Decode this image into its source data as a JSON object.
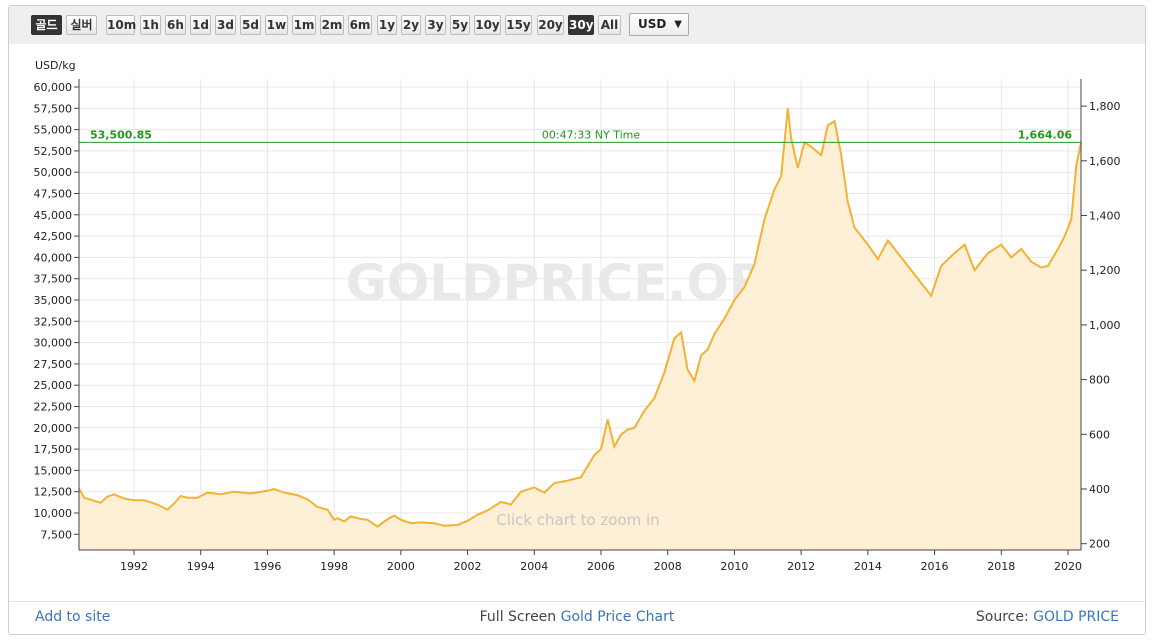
{
  "toolbar": {
    "buttons": [
      {
        "label": "골드",
        "active": true
      },
      {
        "label": "실버",
        "active": false
      },
      {
        "label": "10m",
        "active": false
      },
      {
        "label": "1h",
        "active": false
      },
      {
        "label": "6h",
        "active": false
      },
      {
        "label": "1d",
        "active": false
      },
      {
        "label": "3d",
        "active": false
      },
      {
        "label": "5d",
        "active": false
      },
      {
        "label": "1w",
        "active": false
      },
      {
        "label": "1m",
        "active": false
      },
      {
        "label": "2m",
        "active": false
      },
      {
        "label": "6m",
        "active": false
      },
      {
        "label": "1y",
        "active": false
      },
      {
        "label": "2y",
        "active": false
      },
      {
        "label": "3y",
        "active": false
      },
      {
        "label": "5y",
        "active": false
      },
      {
        "label": "10y",
        "active": false
      },
      {
        "label": "15y",
        "active": false
      },
      {
        "label": "20y",
        "active": false
      },
      {
        "label": "30y",
        "active": true
      },
      {
        "label": "All",
        "active": false
      }
    ],
    "currency": "USD",
    "currency_caret": "▼"
  },
  "colors": {
    "line": "#f2b233",
    "area": "#fdf0d7",
    "current_line": "#2a9a2a",
    "current_text": "#1f9a1f",
    "grid": "#e7e7e7",
    "active_button": "#333333"
  },
  "watermark": "GOLDPRICE.ORG",
  "zoom_hint": "Click chart to zoom in",
  "footer": {
    "add_link": "Add to site",
    "full_screen_prefix": "Full Screen ",
    "full_screen_link": "Gold Price Chart",
    "source_prefix": "Source: ",
    "source_link": "GOLD PRICE"
  },
  "chart_data": {
    "type": "area",
    "left_axis_unit": "USD/kg",
    "left_ticks": [
      7500,
      10000,
      12500,
      15000,
      17500,
      20000,
      22500,
      25000,
      27500,
      30000,
      32500,
      35000,
      37500,
      40000,
      42500,
      45000,
      47500,
      50000,
      52500,
      55000,
      57500,
      60000
    ],
    "left_tick_labels": [
      "7,500",
      "10,000",
      "12,500",
      "15,000",
      "17,500",
      "20,000",
      "22,500",
      "25,000",
      "27,500",
      "30,000",
      "32,500",
      "35,000",
      "37,500",
      "40,000",
      "42,500",
      "45,000",
      "47,500",
      "50,000",
      "52,500",
      "55,000",
      "57,500",
      "60,000"
    ],
    "right_ticks": [
      200,
      400,
      600,
      800,
      1000,
      1200,
      1400,
      1600,
      1800
    ],
    "right_tick_labels": [
      "200",
      "400",
      "600",
      "800",
      "1,000",
      "1,200",
      "1,400",
      "1,600",
      "1,800"
    ],
    "x_ticks": [
      1992,
      1994,
      1996,
      1998,
      2000,
      2002,
      2004,
      2006,
      2008,
      2010,
      2012,
      2014,
      2016,
      2018,
      2020
    ],
    "x_range": [
      1990.25,
      2020.4
    ],
    "y_range_usd_kg": [
      6000,
      61000
    ],
    "grid": true,
    "current": {
      "value_kg": "53,500.85",
      "value_oz": "1,664.06",
      "time": "00:47:33 NY Time",
      "value_kg_num": 53500.85
    },
    "series": [
      {
        "x": [
          1990.25,
          1990.5,
          1991.0,
          1991.2,
          1991.4,
          1991.7,
          1992.0,
          1992.3,
          1992.7,
          1993.0,
          1993.2,
          1993.4,
          1993.6,
          1993.9,
          1994.2,
          1994.6,
          1995.0,
          1995.5,
          1996.0,
          1996.2,
          1996.5,
          1996.9,
          1997.2,
          1997.5,
          1997.8,
          1998.0,
          1998.1,
          1998.3,
          1998.5,
          1998.8,
          1999.0,
          1999.3,
          1999.5,
          1999.7,
          1999.8,
          2000.0,
          2000.3,
          2000.6,
          2001.0,
          2001.3,
          2001.7,
          2002.0,
          2002.3,
          2002.6,
          2003.0,
          2003.3,
          2003.6,
          2004.0,
          2004.3,
          2004.6,
          2005.0,
          2005.4,
          2005.8,
          2006.0,
          2006.2,
          2006.4,
          2006.6,
          2006.8,
          2007.0,
          2007.3,
          2007.6,
          2007.9,
          2008.2,
          2008.4,
          2008.6,
          2008.8,
          2009.0,
          2009.2,
          2009.4,
          2009.7,
          2010.0,
          2010.3,
          2010.6,
          2010.9,
          2011.2,
          2011.4,
          2011.6,
          2011.7,
          2011.9,
          2012.1,
          2012.3,
          2012.6,
          2012.8,
          2013.0,
          2013.2,
          2013.4,
          2013.6,
          2014.0,
          2014.3,
          2014.6,
          2015.0,
          2015.3,
          2015.6,
          2015.9,
          2016.2,
          2016.6,
          2016.9,
          2017.2,
          2017.6,
          2018.0,
          2018.3,
          2018.6,
          2018.9,
          2019.2,
          2019.4,
          2019.7,
          2019.9,
          2020.1,
          2020.25,
          2020.4
        ],
        "y": [
          12900,
          11800,
          11200,
          11900,
          12200,
          11700,
          11500,
          11500,
          11000,
          10400,
          11100,
          12000,
          11800,
          11800,
          12400,
          12200,
          12500,
          12300,
          12600,
          12800,
          12400,
          12100,
          11600,
          10700,
          10400,
          9200,
          9400,
          9000,
          9600,
          9300,
          9200,
          8400,
          9000,
          9500,
          9700,
          9200,
          8800,
          8900,
          8800,
          8500,
          8600,
          9100,
          9800,
          10300,
          11300,
          11000,
          12500,
          13000,
          12400,
          13500,
          13800,
          14200,
          16800,
          17500,
          21000,
          17800,
          19200,
          19800,
          20000,
          22000,
          23500,
          26500,
          30500,
          31200,
          26800,
          25500,
          28500,
          29200,
          31000,
          32800,
          35000,
          36500,
          39200,
          44500,
          48000,
          49500,
          57500,
          54000,
          50500,
          53500,
          53000,
          52000,
          55500,
          56000,
          52000,
          46500,
          43500,
          41500,
          39800,
          42000,
          40000,
          38500,
          37000,
          35500,
          39000,
          40500,
          41500,
          38500,
          40500,
          41500,
          40000,
          41000,
          39500,
          38800,
          39000,
          41000,
          42500,
          44500,
          50800,
          53500
        ]
      }
    ]
  }
}
